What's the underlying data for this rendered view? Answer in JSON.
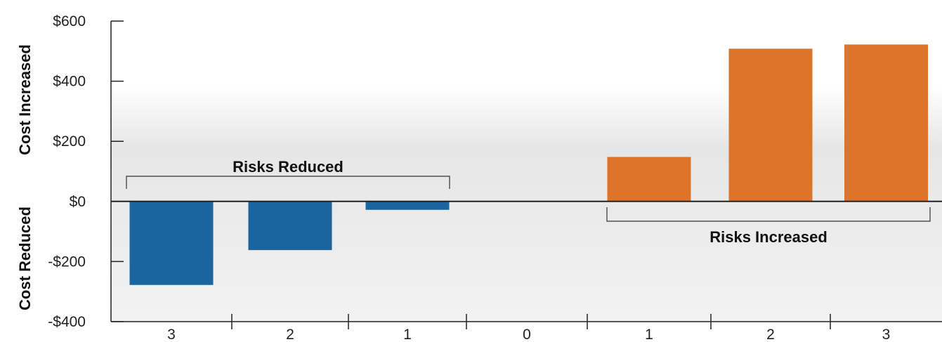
{
  "chart_data": {
    "type": "bar",
    "categories": [
      "3",
      "2",
      "1",
      "0",
      "1",
      "2",
      "3"
    ],
    "values": [
      -278,
      -162,
      -28,
      0,
      148,
      508,
      522
    ],
    "ylim": [
      -400,
      600
    ],
    "yticks": [
      600,
      400,
      200,
      0,
      -200,
      -400
    ],
    "ytick_labels": [
      "$600",
      "$400",
      "$200",
      "$0",
      "-$200",
      "-$400"
    ],
    "ylabel_top": "Cost Increased",
    "ylabel_bottom": "Cost Reduced",
    "groups": [
      {
        "label": "Risks Reduced",
        "categories": [
          0,
          2
        ],
        "color": "#1a65a0"
      },
      {
        "label": "Risks Increased",
        "categories": [
          4,
          6
        ],
        "color": "#de7429"
      }
    ],
    "grid": false,
    "background_gradient": true
  }
}
